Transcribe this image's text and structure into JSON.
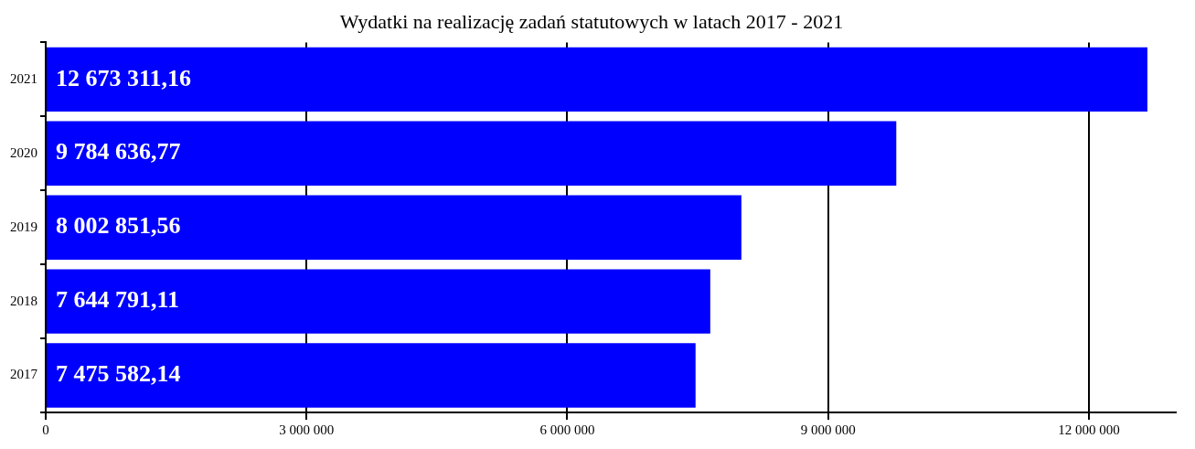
{
  "chart_data": {
    "type": "bar",
    "orientation": "horizontal",
    "title": "Wydatki na realizację zadań statutowych w latach 2017 - 2021",
    "categories": [
      "2021",
      "2020",
      "2019",
      "2018",
      "2017"
    ],
    "values": [
      12673311.16,
      9784636.77,
      8002851.56,
      7644791.11,
      7475582.14
    ],
    "value_labels": [
      "12 673 311,16",
      "9 784 636,77",
      "8 002 851,56",
      "7 644 791,11",
      "7 475 582,14"
    ],
    "color": "#0000ff",
    "xlim": [
      0,
      13000000
    ],
    "xticks": [
      0,
      {
        "value": 3000000,
        "label": "3 000 000"
      },
      {
        "value": 6000000,
        "label": "6 000 000"
      },
      {
        "value": 9000000,
        "label": "9 000 000"
      },
      {
        "value": 12000000,
        "label": "12 000 000"
      }
    ],
    "grid": "x",
    "legend": false
  }
}
